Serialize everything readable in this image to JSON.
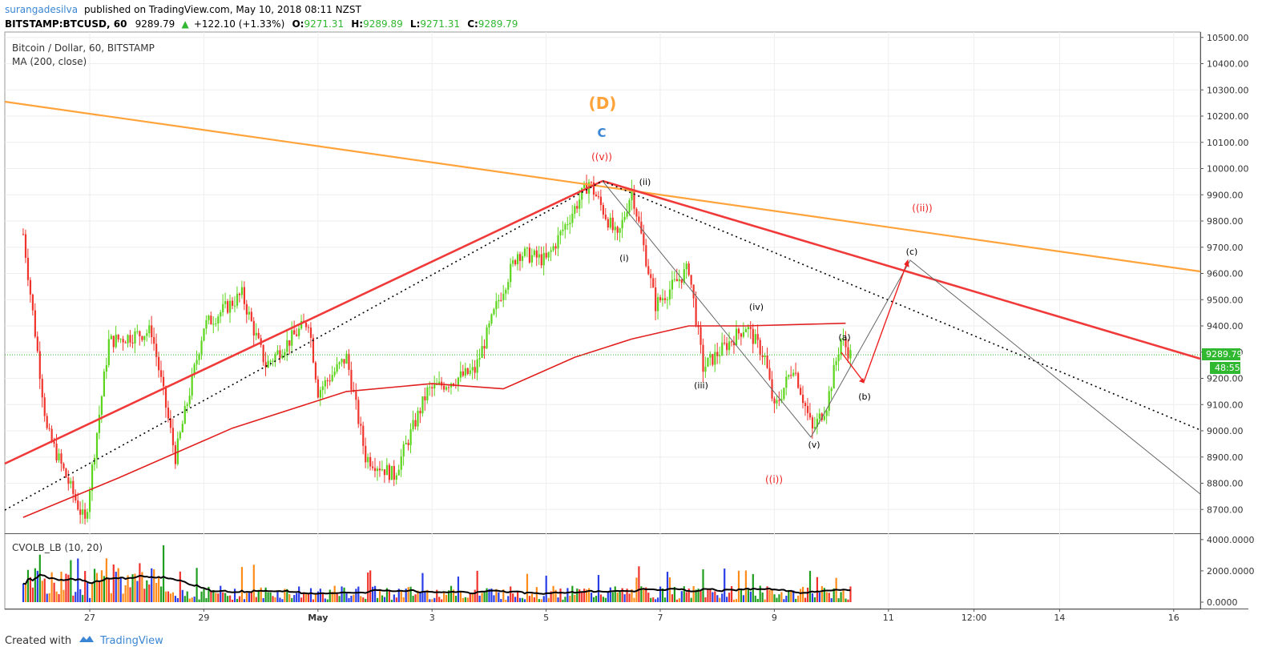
{
  "header": {
    "author": "surangadesilva",
    "published": "published on TradingView.com, May 10, 2018 08:11 NZST",
    "symbol_line": "BITSTAMP:BTCUSD, 60",
    "last": "9289.79",
    "change": "+122.10 (+1.33%)",
    "o_label": "O:",
    "o": "9271.31",
    "h_label": "H:",
    "h": "9289.89",
    "l_label": "L:",
    "l": "9271.31",
    "c_label": "C:",
    "c": "9289.79"
  },
  "legend": {
    "series_title": "Bitcoin / Dollar, 60, BITSTAMP",
    "ma_label": "MA (200, close)",
    "volume_label": "CVOLB_LB (10, 20)"
  },
  "price_badge": {
    "value": "9289.79",
    "countdown": "48:55"
  },
  "footer": {
    "created_with": "Created with",
    "brand": "TradingView"
  },
  "colors": {
    "up": "#5bd51b",
    "down": "#f0342c",
    "ma": "#e11f1f",
    "orange": "#ffa33a",
    "redline": "#f03a3a",
    "wave_red": "#ee2222",
    "wave_blue": "#3a86d4",
    "current": "#31b831"
  },
  "chart_data": {
    "type": "line",
    "title": "Bitcoin / Dollar, 60, BITSTAMP",
    "ylim": [
      8620,
      10530
    ],
    "y_ticks": [
      "10500.00",
      "10400.00",
      "10300.00",
      "10200.00",
      "10100.00",
      "10000.00",
      "9900.00",
      "9800.00",
      "9700.00",
      "9600.00",
      "9500.00",
      "9400.00",
      "9300.00",
      "9200.00",
      "9100.00",
      "9000.00",
      "8900.00",
      "8800.00",
      "8700.00"
    ],
    "x_tick_labels": [
      "27",
      "29",
      "May",
      "3",
      "5",
      "7",
      "9",
      "11",
      "12:00",
      "14",
      "16"
    ],
    "price_path": [
      {
        "t": "Apr 25 20:00",
        "price": 9750
      },
      {
        "t": "Apr 26 06:00",
        "price": 9000
      },
      {
        "t": "Apr 26 22:00",
        "price": 8650
      },
      {
        "t": "Apr 27 08:00",
        "price": 9340
      },
      {
        "t": "Apr 28 02:00",
        "price": 9380
      },
      {
        "t": "Apr 28 12:00",
        "price": 8900
      },
      {
        "t": "Apr 29 00:00",
        "price": 9400
      },
      {
        "t": "Apr 29 16:00",
        "price": 9520
      },
      {
        "t": "Apr 30 02:00",
        "price": 9250
      },
      {
        "t": "Apr 30 20:00",
        "price": 9420
      },
      {
        "t": "May 1 00:00",
        "price": 9150
      },
      {
        "t": "May 1 12:00",
        "price": 9280
      },
      {
        "t": "May 1 20:00",
        "price": 8900
      },
      {
        "t": "May 2 08:00",
        "price": 8830
      },
      {
        "t": "May 2 22:00",
        "price": 9150
      },
      {
        "t": "May 3 18:00",
        "price": 9230
      },
      {
        "t": "May 4 04:00",
        "price": 9500
      },
      {
        "t": "May 4 12:00",
        "price": 9680
      },
      {
        "t": "May 5 00:00",
        "price": 9650
      },
      {
        "t": "May 5 18:00",
        "price": 9950
      },
      {
        "t": "May 6 06:00",
        "price": 9730
      },
      {
        "t": "May 6 12:00",
        "price": 9920
      },
      {
        "t": "May 6 22:00",
        "price": 9480
      },
      {
        "t": "May 7 12:00",
        "price": 9620
      },
      {
        "t": "May 7 18:00",
        "price": 9240
      },
      {
        "t": "May 8 12:00",
        "price": 9400
      },
      {
        "t": "May 8 20:00",
        "price": 9280
      },
      {
        "t": "May 9 00:00",
        "price": 9080
      },
      {
        "t": "May 9 08:00",
        "price": 9250
      },
      {
        "t": "May 9 16:00",
        "price": 9000
      },
      {
        "t": "May 9 22:00",
        "price": 9100
      },
      {
        "t": "May 10 04:00",
        "price": 9350
      },
      {
        "t": "May 10 08:00",
        "price": 9290
      }
    ],
    "ma200": [
      {
        "t": "Apr 25 20:00",
        "price": 8670
      },
      {
        "t": "Apr 27 12:00",
        "price": 8820
      },
      {
        "t": "Apr 29 12:00",
        "price": 9010
      },
      {
        "t": "May 1 12:00",
        "price": 9150
      },
      {
        "t": "May 3 00:00",
        "price": 9180
      },
      {
        "t": "May 4 06:00",
        "price": 9160
      },
      {
        "t": "May 5 12:00",
        "price": 9280
      },
      {
        "t": "May 6 12:00",
        "price": 9350
      },
      {
        "t": "May 7 12:00",
        "price": 9400
      },
      {
        "t": "May 8 12:00",
        "price": 9400
      },
      {
        "t": "May 10 06:00",
        "price": 9410
      }
    ],
    "annotations": [
      "(D)",
      "C",
      "((v))",
      "(ii)",
      "(i)",
      "(iii)",
      "(iv)",
      "(v)",
      "((i))",
      "(a)",
      "(b)",
      "(c)",
      "((ii))"
    ],
    "volume": {
      "ylim": [
        0,
        4300
      ],
      "y_ticks": [
        "4000.0000",
        "2000.0000",
        "0.0000"
      ]
    }
  }
}
